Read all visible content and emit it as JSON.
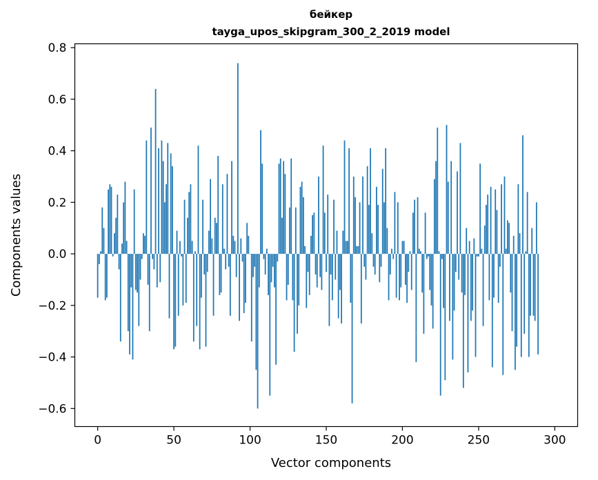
{
  "chart_data": {
    "type": "bar",
    "title": "бейкер",
    "subtitle": "tayga_upos_skipgram_300_2_2019 model",
    "xlabel": "Vector components",
    "ylabel": "Components values",
    "xlim": [
      -15,
      315
    ],
    "ylim": [
      -0.67,
      0.815
    ],
    "xticks": [
      0,
      50,
      100,
      150,
      200,
      250,
      300
    ],
    "yticks": [
      -0.6,
      -0.4,
      -0.2,
      0.0,
      0.2,
      0.4,
      0.6,
      0.8
    ],
    "xtick_labels": [
      "0",
      "50",
      "100",
      "150",
      "200",
      "250",
      "300"
    ],
    "ytick_labels": [
      "−0.6",
      "−0.4",
      "−0.2",
      "0.0",
      "0.2",
      "0.4",
      "0.6",
      "0.8"
    ],
    "bar_color": "#1f77b4",
    "grid": false,
    "values": [
      -0.17,
      -0.04,
      0.01,
      0.18,
      0.1,
      -0.18,
      -0.17,
      0.25,
      0.27,
      0.26,
      -0.01,
      0.08,
      0.14,
      0.23,
      -0.06,
      -0.34,
      0.04,
      0.2,
      0.28,
      0.05,
      -0.3,
      -0.39,
      -0.13,
      -0.41,
      0.25,
      -0.14,
      -0.15,
      -0.28,
      -0.1,
      -0.02,
      0.08,
      0.07,
      0.44,
      -0.12,
      -0.3,
      0.49,
      -0.02,
      -0.06,
      0.64,
      -0.13,
      0.41,
      -0.11,
      0.44,
      0.36,
      0.2,
      0.27,
      0.43,
      -0.25,
      0.39,
      0.34,
      -0.37,
      -0.36,
      0.09,
      -0.24,
      0.05,
      -0.01,
      -0.2,
      0.21,
      -0.19,
      0.14,
      0.24,
      0.27,
      0.05,
      -0.34,
      0.01,
      -0.28,
      0.42,
      -0.37,
      -0.17,
      0.21,
      -0.08,
      -0.36,
      -0.07,
      0.09,
      0.29,
      0.06,
      -0.24,
      0.14,
      0.12,
      0.38,
      -0.16,
      -0.15,
      0.27,
      0.02,
      -0.06,
      0.31,
      -0.05,
      -0.24,
      0.36,
      0.07,
      0.05,
      -0.09,
      0.74,
      -0.26,
      0.06,
      -0.03,
      -0.23,
      -0.19,
      0.12,
      0.07,
      0.0,
      -0.34,
      -0.09,
      -0.05,
      -0.45,
      -0.6,
      -0.13,
      0.48,
      0.35,
      -0.02,
      -0.08,
      0.02,
      -0.16,
      -0.55,
      -0.11,
      -0.05,
      -0.13,
      -0.43,
      -0.03,
      0.35,
      0.37,
      0.14,
      0.36,
      0.31,
      -0.18,
      -0.12,
      0.18,
      0.37,
      -0.18,
      -0.38,
      0.18,
      -0.31,
      -0.2,
      0.26,
      0.28,
      0.22,
      0.03,
      -0.21,
      -0.07,
      -0.16,
      0.07,
      0.15,
      0.16,
      -0.08,
      -0.13,
      0.3,
      -0.09,
      -0.14,
      0.42,
      0.16,
      -0.07,
      0.23,
      -0.28,
      -0.08,
      -0.18,
      0.21,
      -0.1,
      0.09,
      -0.25,
      -0.14,
      -0.27,
      0.09,
      0.44,
      0.05,
      0.05,
      0.41,
      -0.19,
      -0.58,
      0.3,
      0.22,
      0.03,
      0.03,
      0.2,
      -0.27,
      0.3,
      -0.05,
      -0.1,
      0.34,
      0.19,
      0.41,
      0.08,
      -0.05,
      -0.08,
      0.26,
      0.19,
      -0.11,
      -0.05,
      0.33,
      0.2,
      0.41,
      0.1,
      -0.18,
      -0.08,
      0.02,
      -0.02,
      0.24,
      -0.17,
      0.2,
      -0.18,
      -0.13,
      0.05,
      0.05,
      -0.12,
      -0.19,
      -0.07,
      0.01,
      -0.14,
      0.16,
      0.21,
      -0.42,
      0.22,
      0.02,
      0.01,
      -0.15,
      -0.31,
      0.16,
      -0.02,
      -0.01,
      -0.14,
      -0.2,
      -0.29,
      0.29,
      0.36,
      0.49,
      0.01,
      -0.55,
      -0.02,
      -0.21,
      -0.49,
      0.5,
      0.28,
      -0.26,
      0.36,
      -0.41,
      -0.22,
      -0.07,
      0.32,
      -0.1,
      0.43,
      -0.15,
      -0.52,
      -0.16,
      0.1,
      -0.46,
      0.05,
      -0.26,
      -0.22,
      0.06,
      -0.4,
      -0.01,
      -0.01,
      0.35,
      0.02,
      -0.28,
      0.11,
      0.19,
      0.23,
      -0.18,
      0.26,
      -0.44,
      -0.17,
      0.25,
      0.17,
      -0.19,
      -0.05,
      0.27,
      -0.47,
      0.3,
      0.02,
      0.13,
      0.12,
      -0.15,
      -0.3,
      0.07,
      -0.45,
      -0.36,
      0.27,
      0.08,
      -0.4,
      0.46,
      -0.31,
      0.01,
      0.24,
      -0.4,
      -0.24,
      0.1,
      -0.24,
      -0.26,
      0.2,
      -0.39
    ]
  }
}
